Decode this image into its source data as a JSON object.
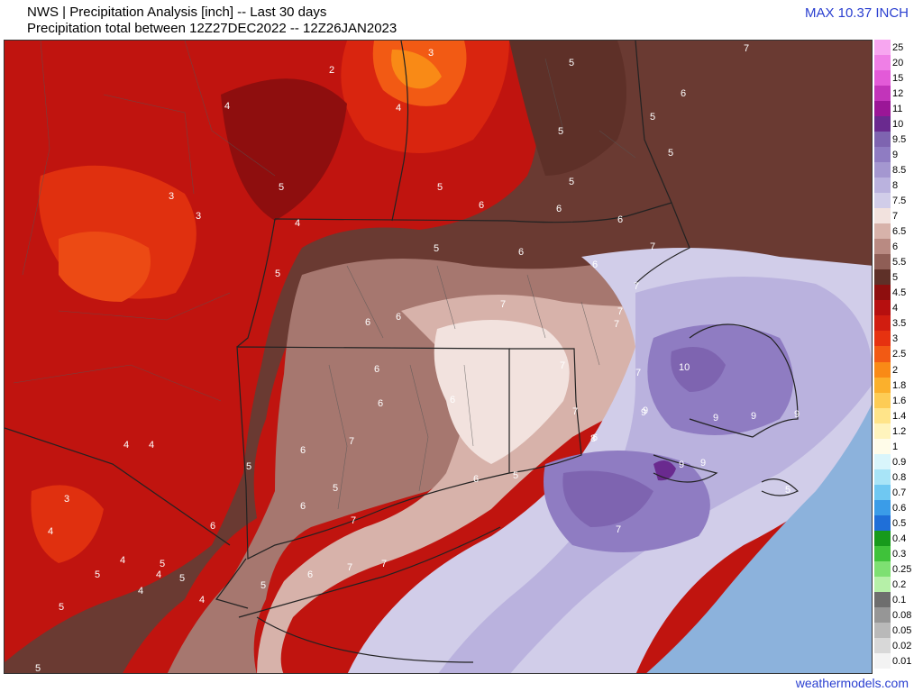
{
  "header": {
    "title_line1": "NWS | Precipitation Analysis [inch] -- Last 30 days",
    "title_line2": "Precipitation total between 12Z27DEC2022 -- 12Z26JAN2023",
    "max_label": "MAX 10.37 INCH"
  },
  "footer": {
    "credit": "weathermodels.com"
  },
  "legend": [
    {
      "label": "25",
      "color": "#f7a6f0"
    },
    {
      "label": "20",
      "color": "#ef7fe6"
    },
    {
      "label": "15",
      "color": "#e35ad8"
    },
    {
      "label": "12",
      "color": "#c234ba"
    },
    {
      "label": "11",
      "color": "#9b1697"
    },
    {
      "label": "10",
      "color": "#6a2a8f"
    },
    {
      "label": "9.5",
      "color": "#7e64b0"
    },
    {
      "label": "9",
      "color": "#8f7cc2"
    },
    {
      "label": "8.5",
      "color": "#a497d0"
    },
    {
      "label": "8",
      "color": "#bab2de"
    },
    {
      "label": "7.5",
      "color": "#d1cde9"
    },
    {
      "label": "7",
      "color": "#f2e2de"
    },
    {
      "label": "6.5",
      "color": "#d7b2aa"
    },
    {
      "label": "6",
      "color": "#b98a82"
    },
    {
      "label": "5.5",
      "color": "#8f5e56"
    },
    {
      "label": "5",
      "color": "#5e3028"
    },
    {
      "label": "4.5",
      "color": "#8e0e0e"
    },
    {
      "label": "4",
      "color": "#b60f0f"
    },
    {
      "label": "3.5",
      "color": "#d11d10"
    },
    {
      "label": "3",
      "color": "#e63210"
    },
    {
      "label": "2.5",
      "color": "#f25a14"
    },
    {
      "label": "2",
      "color": "#f98a16"
    },
    {
      "label": "1.8",
      "color": "#fbb02c"
    },
    {
      "label": "1.6",
      "color": "#fdcc55"
    },
    {
      "label": "1.4",
      "color": "#ffe489"
    },
    {
      "label": "1.2",
      "color": "#fff4bd"
    },
    {
      "label": "1",
      "color": "#fffce9"
    },
    {
      "label": "0.9",
      "color": "#d9f5fb"
    },
    {
      "label": "0.8",
      "color": "#a8e4f7"
    },
    {
      "label": "0.7",
      "color": "#6fc8f2"
    },
    {
      "label": "0.6",
      "color": "#3a9ce8"
    },
    {
      "label": "0.5",
      "color": "#1f6fd8"
    },
    {
      "label": "0.4",
      "color": "#179a1c"
    },
    {
      "label": "0.3",
      "color": "#3fc23a"
    },
    {
      "label": "0.25",
      "color": "#7ee072"
    },
    {
      "label": "0.2",
      "color": "#b6f0a8"
    },
    {
      "label": "0.1",
      "color": "#6e6e6e"
    },
    {
      "label": "0.08",
      "color": "#969696"
    },
    {
      "label": "0.05",
      "color": "#b9b9b9"
    },
    {
      "label": "0.02",
      "color": "#d8d8d8"
    },
    {
      "label": "0.01",
      "color": "#f3f3f3"
    }
  ],
  "map_labels": [
    "3",
    "4",
    "2",
    "4",
    "5",
    "6",
    "7",
    "5",
    "3",
    "3",
    "4",
    "5",
    "5",
    "5",
    "5",
    "5",
    "6",
    "6",
    "6",
    "7",
    "7",
    "7",
    "5",
    "6",
    "6",
    "6",
    "6",
    "7",
    "7",
    "7",
    "10",
    "9",
    "9",
    "9",
    "9",
    "6",
    "6",
    "7",
    "6",
    "5",
    "6",
    "6",
    "7",
    "5",
    "4",
    "4",
    "5",
    "3",
    "4",
    "5",
    "4",
    "4",
    "5",
    "5",
    "4",
    "5",
    "4",
    "5",
    "6",
    "6",
    "7",
    "7",
    "5",
    "8",
    "9",
    "5",
    "6",
    "7",
    "6",
    "7",
    "5",
    "7",
    "9",
    "9"
  ]
}
